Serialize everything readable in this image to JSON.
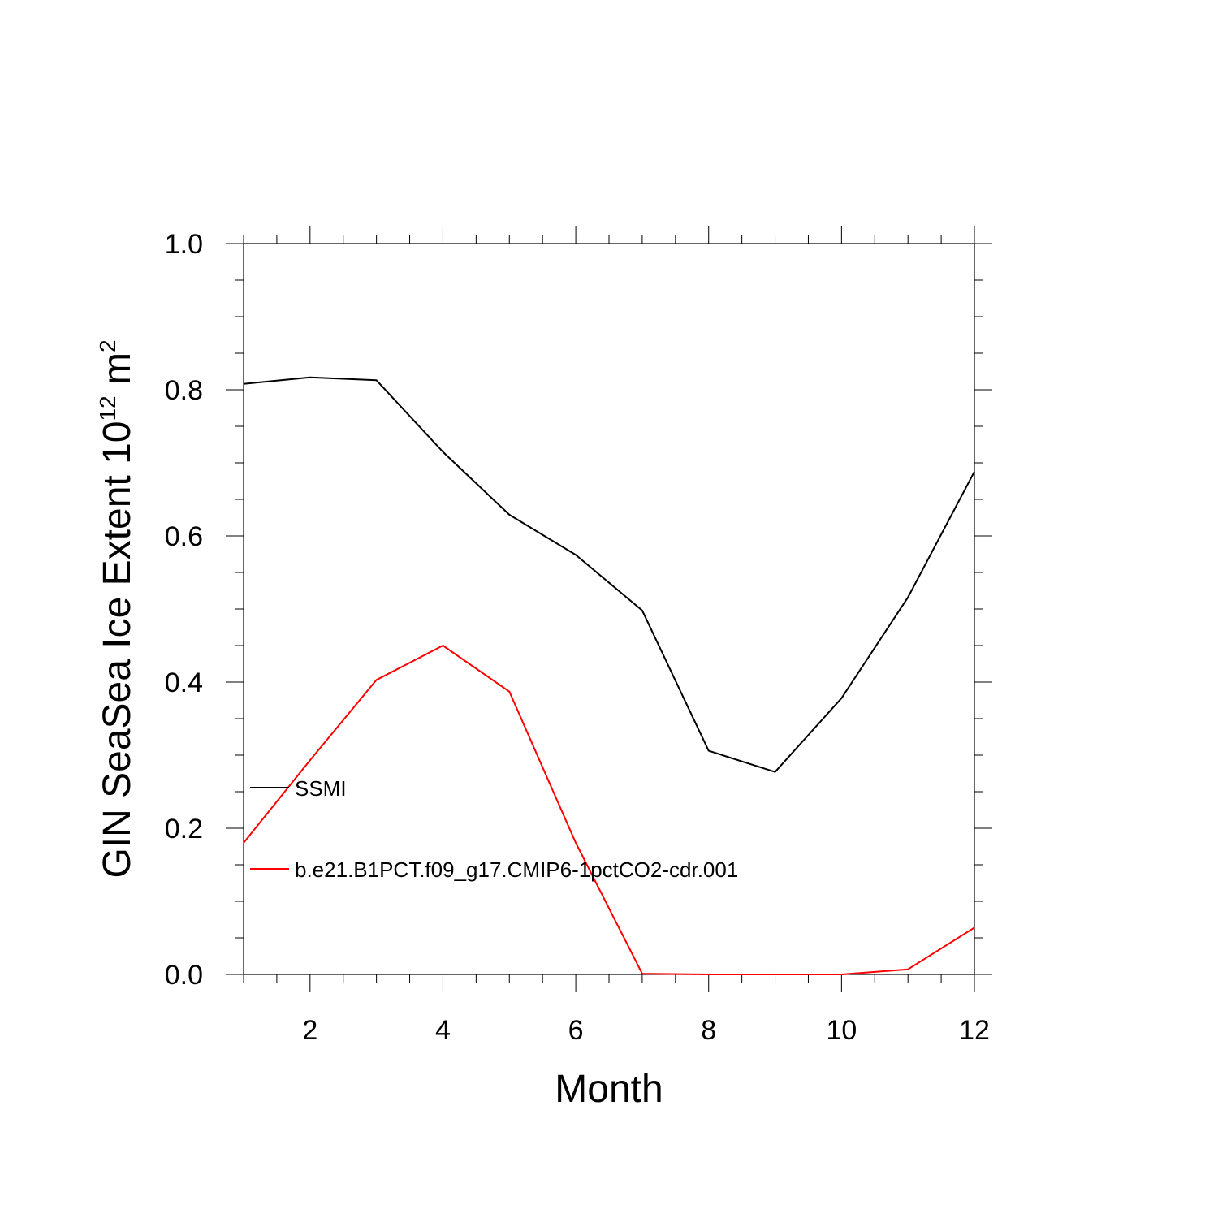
{
  "chart_data": {
    "type": "line",
    "title": "",
    "xlabel": "Month",
    "ylabel_main": "GIN SeaSea Ice Extent 10",
    "ylabel_sup1": "12",
    "ylabel_unit": " m",
    "ylabel_sup2": "2",
    "xlim": [
      1,
      12
    ],
    "ylim": [
      0,
      1.0
    ],
    "x_ticks": [
      2,
      4,
      6,
      8,
      10,
      12
    ],
    "x_tick_labels": [
      "2",
      "4",
      "6",
      "8",
      "10",
      "12"
    ],
    "y_ticks": [
      0,
      0.2,
      0.4,
      0.6,
      0.8,
      1.0
    ],
    "y_tick_labels": [
      "0.0",
      "0.2",
      "0.4",
      "0.6",
      "0.8",
      "1.0"
    ],
    "grid": false,
    "legend_position": "left-inside",
    "x": [
      1,
      2,
      3,
      4,
      5,
      6,
      7,
      8,
      9,
      10,
      11,
      12
    ],
    "series": [
      {
        "name": "SSMI",
        "color": "#000000",
        "values": [
          0.808,
          0.817,
          0.813,
          0.715,
          0.629,
          0.574,
          0.498,
          0.306,
          0.277,
          0.378,
          0.516,
          0.688
        ]
      },
      {
        "name": "b.e21.B1PCT.f09_g17.CMIP6-1pctCO2-cdr.001",
        "color": "#ff0000",
        "values": [
          0.18,
          0.293,
          0.403,
          0.45,
          0.387,
          0.18,
          0.001,
          0.0,
          0.0,
          0.0,
          0.007,
          0.064
        ]
      }
    ]
  }
}
